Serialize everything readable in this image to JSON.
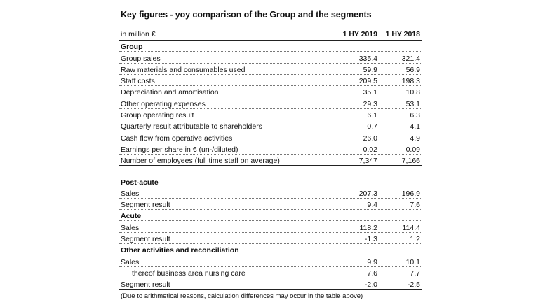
{
  "title": "Key figures - yoy comparison of the Group and the segments",
  "header": {
    "unit": "in million €",
    "col1": "1 HY 2019",
    "col2": "1 HY 2018"
  },
  "group": {
    "heading": "Group",
    "rows": [
      {
        "label": "Group sales",
        "v1": "335.4",
        "v2": "321.4"
      },
      {
        "label": "Raw materials and consumables used",
        "v1": "59.9",
        "v2": "56.9"
      },
      {
        "label": "Staff costs",
        "v1": "209.5",
        "v2": "198.3"
      },
      {
        "label": "Depreciation and amortisation",
        "v1": "35.1",
        "v2": "10.8"
      },
      {
        "label": "Other operating expenses",
        "v1": "29.3",
        "v2": "53.1"
      },
      {
        "label": "Group operating result",
        "v1": "6.1",
        "v2": "6.3"
      },
      {
        "label": "Quarterly result attributable to shareholders",
        "v1": "0.7",
        "v2": "4.1"
      },
      {
        "label": "Cash flow from operative activities",
        "v1": "26.0",
        "v2": "4.9"
      },
      {
        "label": "Earnings per share in € (un-/diluted)",
        "v1": "0.02",
        "v2": "0.09"
      },
      {
        "label": "Number of employees  (full time staff on average)",
        "v1": "7,347",
        "v2": "7,166"
      }
    ]
  },
  "post_acute": {
    "heading": "Post-acute",
    "rows": [
      {
        "label": "Sales",
        "v1": "207.3",
        "v2": "196.9"
      },
      {
        "label": "Segment result",
        "v1": "9.4",
        "v2": "7.6"
      }
    ]
  },
  "acute": {
    "heading": "Acute",
    "rows": [
      {
        "label": "Sales",
        "v1": "118.2",
        "v2": "114.4"
      },
      {
        "label": "Segment result",
        "v1": "-1.3",
        "v2": "1.2"
      }
    ]
  },
  "other": {
    "heading": "Other activities and reconciliation",
    "rows": [
      {
        "label": "Sales",
        "v1": "9.9",
        "v2": "10.1"
      },
      {
        "label": "thereof business area nursing care",
        "v1": "7.6",
        "v2": "7.7"
      },
      {
        "label": "Segment result",
        "v1": "-2.0",
        "v2": "-2.5"
      }
    ]
  },
  "footnote": "(Due to arithmetical reasons, calculation differences may occur in the table above)"
}
